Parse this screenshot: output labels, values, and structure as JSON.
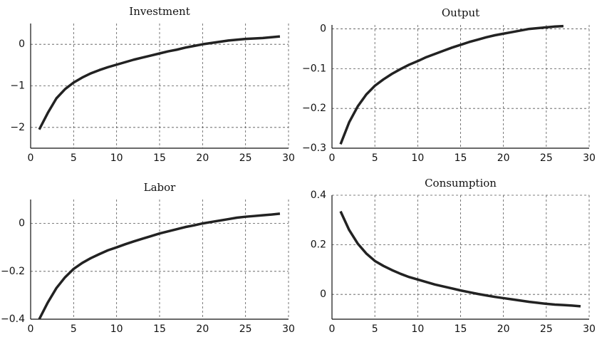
{
  "chart_data": [
    {
      "type": "line",
      "title": "Investment",
      "color": "#222",
      "grid": true,
      "x": [
        1,
        2,
        3,
        4,
        5,
        6,
        7,
        8,
        9,
        10,
        11,
        12,
        13,
        14,
        15,
        16,
        17,
        18,
        19,
        20,
        21,
        22,
        23,
        24,
        25,
        26,
        27,
        28,
        29
      ],
      "values": [
        -2.05,
        -1.65,
        -1.3,
        -1.08,
        -0.92,
        -0.8,
        -0.7,
        -0.62,
        -0.55,
        -0.49,
        -0.43,
        -0.37,
        -0.32,
        -0.27,
        -0.22,
        -0.17,
        -0.13,
        -0.08,
        -0.04,
        0.0,
        0.03,
        0.06,
        0.09,
        0.11,
        0.13,
        0.14,
        0.15,
        0.17,
        0.19
      ],
      "xlim": [
        0,
        30
      ],
      "xticks": [
        0,
        5,
        10,
        15,
        20,
        25,
        30
      ],
      "ylim": [
        -2.5,
        0.5
      ],
      "yticks": [
        {
          "value": -2,
          "label": "−2"
        },
        {
          "value": -1,
          "label": "−1"
        },
        0
      ]
    },
    {
      "type": "line",
      "title": "Output",
      "color": "#222",
      "grid": true,
      "x": [
        1,
        2,
        3,
        4,
        5,
        6,
        7,
        8,
        9,
        10,
        11,
        12,
        13,
        14,
        15,
        16,
        17,
        18,
        19,
        20,
        21,
        22,
        23,
        24,
        25,
        26,
        27
      ],
      "values": [
        -0.29,
        -0.235,
        -0.195,
        -0.165,
        -0.143,
        -0.127,
        -0.113,
        -0.101,
        -0.09,
        -0.081,
        -0.071,
        -0.063,
        -0.055,
        -0.047,
        -0.04,
        -0.033,
        -0.027,
        -0.021,
        -0.016,
        -0.012,
        -0.008,
        -0.004,
        0.0,
        0.002,
        0.004,
        0.006,
        0.007
      ],
      "xlim": [
        0,
        30
      ],
      "xticks": [
        0,
        5,
        10,
        15,
        20,
        25,
        30
      ],
      "ylim": [
        -0.3,
        0.01
      ],
      "yticks": [
        {
          "value": -0.3,
          "label": "−0.3"
        },
        {
          "value": -0.2,
          "label": "−0.2"
        },
        {
          "value": -0.1,
          "label": "−0.1"
        },
        0
      ]
    },
    {
      "type": "line",
      "title": "Labor",
      "color": "#222",
      "grid": true,
      "x": [
        1,
        2,
        3,
        4,
        5,
        6,
        7,
        8,
        9,
        10,
        11,
        12,
        13,
        14,
        15,
        16,
        17,
        18,
        19,
        20,
        21,
        22,
        23,
        24,
        25,
        26,
        27,
        28,
        29
      ],
      "values": [
        -0.4,
        -0.33,
        -0.27,
        -0.225,
        -0.19,
        -0.165,
        -0.145,
        -0.128,
        -0.112,
        -0.1,
        -0.087,
        -0.075,
        -0.064,
        -0.053,
        -0.042,
        -0.033,
        -0.024,
        -0.015,
        -0.008,
        0.0,
        0.006,
        0.012,
        0.018,
        0.024,
        0.028,
        0.031,
        0.034,
        0.037,
        0.041
      ],
      "xlim": [
        0,
        30
      ],
      "xticks": [
        0,
        5,
        10,
        15,
        20,
        25,
        30
      ],
      "ylim": [
        -0.4,
        0.1
      ],
      "yticks": [
        {
          "value": -0.4,
          "label": "−0.4"
        },
        {
          "value": -0.2,
          "label": "−0.2"
        },
        0
      ]
    },
    {
      "type": "line",
      "title": "Consumption",
      "color": "#222",
      "grid": true,
      "x": [
        1,
        2,
        3,
        4,
        5,
        6,
        7,
        8,
        9,
        10,
        11,
        12,
        13,
        14,
        15,
        16,
        17,
        18,
        19,
        20,
        21,
        22,
        23,
        24,
        25,
        26,
        27,
        28,
        29
      ],
      "values": [
        0.335,
        0.26,
        0.205,
        0.165,
        0.135,
        0.115,
        0.098,
        0.083,
        0.07,
        0.06,
        0.05,
        0.04,
        0.032,
        0.024,
        0.016,
        0.009,
        0.002,
        -0.004,
        -0.01,
        -0.015,
        -0.02,
        -0.025,
        -0.03,
        -0.034,
        -0.038,
        -0.041,
        -0.043,
        -0.045,
        -0.048
      ],
      "xlim": [
        0,
        30
      ],
      "xticks": [
        0,
        5,
        10,
        15,
        20,
        25,
        30
      ],
      "ylim": [
        -0.1,
        0.4
      ],
      "yticks": [
        0,
        0.2,
        0.4
      ]
    }
  ]
}
